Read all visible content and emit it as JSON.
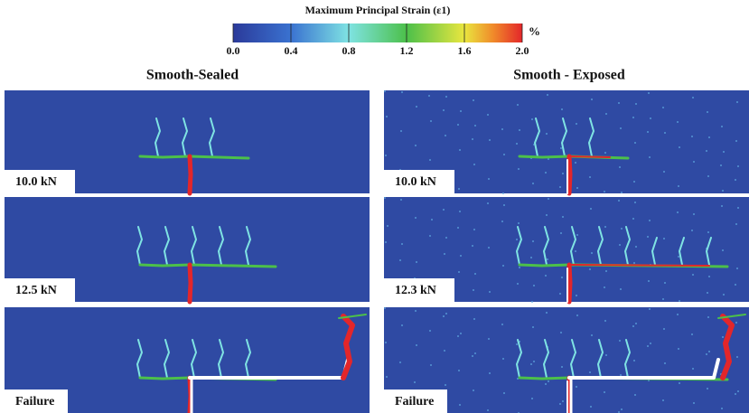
{
  "colorbar": {
    "title": "Maximum Principal Strain (ε1)",
    "unit": "%",
    "ticks": [
      {
        "value": 0,
        "label": "0.0"
      },
      {
        "value": 0.4,
        "label": "0.4"
      },
      {
        "value": 0.8,
        "label": "0.8"
      },
      {
        "value": 1.2,
        "label": "1.2"
      },
      {
        "value": 1.6,
        "label": "1.6"
      },
      {
        "value": 2,
        "label": "2.0"
      }
    ]
  },
  "columns": [
    "Smooth-Sealed",
    "Smooth - Exposed"
  ],
  "panels": [
    [
      "10.0 kN",
      "12.5 kN",
      "Failure"
    ],
    [
      "10.0 kN",
      "12.3 kN",
      "Failure"
    ]
  ]
}
